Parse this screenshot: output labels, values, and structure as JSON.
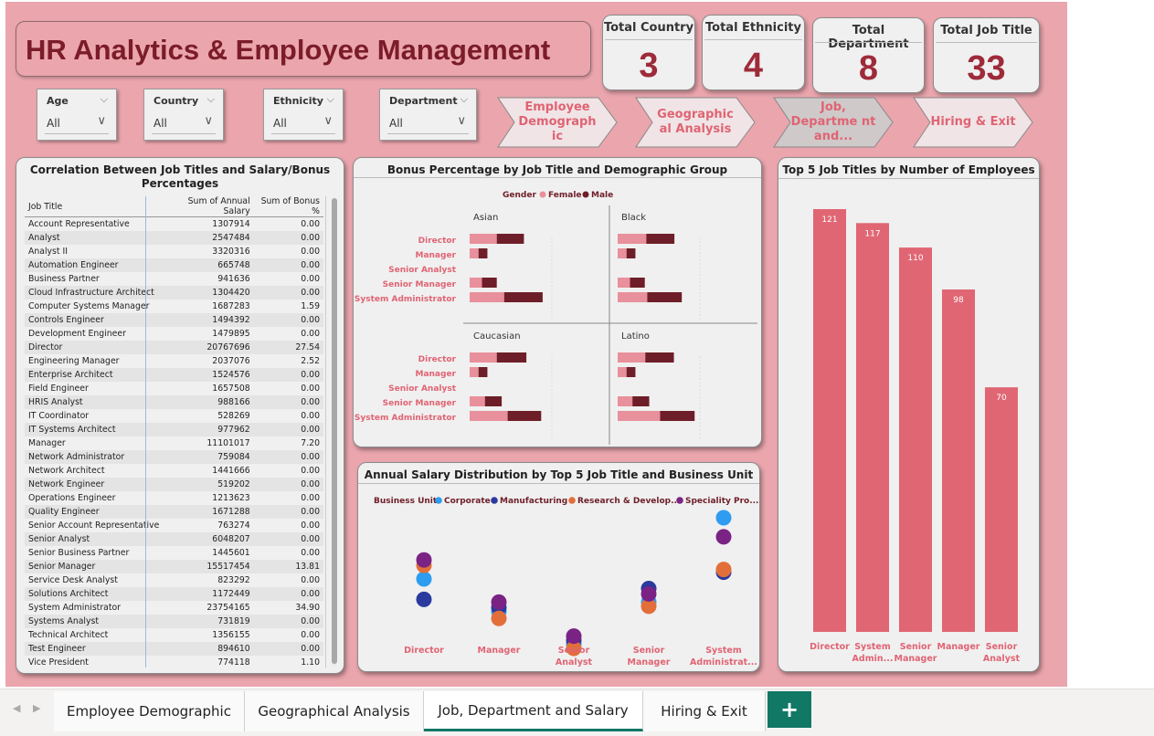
{
  "title": "HR Analytics & Employee Management",
  "kpis": [
    {
      "label": "Total Country",
      "value": "3"
    },
    {
      "label": "Total Ethnicity",
      "value": "4"
    },
    {
      "label": "Total Department",
      "value": "8"
    },
    {
      "label": "Total Job Title",
      "value": "33"
    }
  ],
  "slicers": [
    {
      "label": "Age",
      "value": "All"
    },
    {
      "label": "Country",
      "value": "All"
    },
    {
      "label": "Ethnicity",
      "value": "All"
    },
    {
      "label": "Department",
      "value": "All"
    }
  ],
  "nav_buttons": [
    {
      "label": "Employee Demograph ic"
    },
    {
      "label": "Geographic al Analysis"
    },
    {
      "label": "Job, Departme nt and..."
    },
    {
      "label": "Hiring & Exit"
    }
  ],
  "correlation_table": {
    "title": "Correlation Between Job Titles and Salary/Bonus Percentages",
    "columns": [
      "Job Title",
      "Sum of Annual Salary",
      "Sum of Bonus %"
    ],
    "rows": [
      [
        "Account Representative",
        "1307914",
        "0.00"
      ],
      [
        "Analyst",
        "2547484",
        "0.00"
      ],
      [
        "Analyst II",
        "3320316",
        "0.00"
      ],
      [
        "Automation Engineer",
        "665748",
        "0.00"
      ],
      [
        "Business Partner",
        "941636",
        "0.00"
      ],
      [
        "Cloud Infrastructure Architect",
        "1304420",
        "0.00"
      ],
      [
        "Computer Systems Manager",
        "1687283",
        "1.59"
      ],
      [
        "Controls Engineer",
        "1494392",
        "0.00"
      ],
      [
        "Development Engineer",
        "1479895",
        "0.00"
      ],
      [
        "Director",
        "20767696",
        "27.54"
      ],
      [
        "Engineering Manager",
        "2037076",
        "2.52"
      ],
      [
        "Enterprise Architect",
        "1524576",
        "0.00"
      ],
      [
        "Field Engineer",
        "1657508",
        "0.00"
      ],
      [
        "HRIS Analyst",
        "988166",
        "0.00"
      ],
      [
        "IT Coordinator",
        "528269",
        "0.00"
      ],
      [
        "IT Systems Architect",
        "977962",
        "0.00"
      ],
      [
        "Manager",
        "11101017",
        "7.20"
      ],
      [
        "Network Administrator",
        "759084",
        "0.00"
      ],
      [
        "Network Architect",
        "1441666",
        "0.00"
      ],
      [
        "Network Engineer",
        "519202",
        "0.00"
      ],
      [
        "Operations Engineer",
        "1213623",
        "0.00"
      ],
      [
        "Quality Engineer",
        "1671288",
        "0.00"
      ],
      [
        "Senior Account Representative",
        "763274",
        "0.00"
      ],
      [
        "Senior Analyst",
        "6048207",
        "0.00"
      ],
      [
        "Senior Business Partner",
        "1445601",
        "0.00"
      ],
      [
        "Senior Manager",
        "15517454",
        "13.81"
      ],
      [
        "Service Desk Analyst",
        "823292",
        "0.00"
      ],
      [
        "Solutions Architect",
        "1172449",
        "0.00"
      ],
      [
        "System Administrator",
        "23754165",
        "34.90"
      ],
      [
        "Systems Analyst",
        "731819",
        "0.00"
      ],
      [
        "Technical Architect",
        "1356155",
        "0.00"
      ],
      [
        "Test Engineer",
        "894610",
        "0.00"
      ],
      [
        "Vice President",
        "774118",
        "1.10"
      ]
    ]
  },
  "chart_data": [
    {
      "type": "bar",
      "orientation": "horizontal-stacked",
      "title": "Bonus Percentage by Job Title and Demographic Group",
      "legend_title": "Gender",
      "legend": [
        "Female",
        "Male"
      ],
      "legend_position": "top-center",
      "categories": [
        "Director",
        "Manager",
        "Senior Analyst",
        "Senior Manager",
        "System Administrator"
      ],
      "panels": [
        {
          "name": "Asian",
          "series": [
            {
              "name": "Female",
              "values": [
                5.5,
                1.8,
                0,
                2.5,
                7.0
              ]
            },
            {
              "name": "Male",
              "values": [
                5.5,
                1.8,
                0,
                3.0,
                7.8
              ]
            }
          ]
        },
        {
          "name": "Black",
          "series": [
            {
              "name": "Female",
              "values": [
                5.8,
                1.8,
                0,
                2.5,
                6.0
              ]
            },
            {
              "name": "Male",
              "values": [
                5.7,
                1.8,
                0,
                3.0,
                7.0
              ]
            }
          ]
        },
        {
          "name": "Caucasian",
          "series": [
            {
              "name": "Female",
              "values": [
                5.5,
                1.8,
                0,
                3.1,
                7.7
              ]
            },
            {
              "name": "Male",
              "values": [
                6.0,
                1.8,
                0,
                3.4,
                6.8
              ]
            }
          ]
        },
        {
          "name": "Latino",
          "series": [
            {
              "name": "Female",
              "values": [
                5.6,
                1.8,
                0,
                3.0,
                8.6
              ]
            },
            {
              "name": "Male",
              "values": [
                5.8,
                1.8,
                0,
                3.4,
                7.0
              ]
            }
          ]
        }
      ],
      "colors": {
        "Female": "#e8909b",
        "Male": "#6e1e28"
      }
    },
    {
      "type": "scatter",
      "title": "Annual Salary Distribution by Top 5 Job Title and Business Unit",
      "legend_title": "Business Unit",
      "legend": [
        "Corporate",
        "Manufacturing",
        "Research & Develop...",
        "Speciality Pro..."
      ],
      "legend_position": "top-left",
      "categories": [
        "Director",
        "Manager",
        "Senior Analyst",
        "Senior Manager",
        "System Administrat..."
      ],
      "series": [
        {
          "name": "Corporate",
          "color": "#2e9cf0",
          "values": [
            0.55,
            0.31,
            0.07,
            0.38,
            1.0
          ]
        },
        {
          "name": "Manufacturing",
          "color": "#2b3a9e",
          "values": [
            0.4,
            0.34,
            0.1,
            0.48,
            0.6
          ]
        },
        {
          "name": "Research & Develop...",
          "color": "#e26f3a",
          "values": [
            0.65,
            0.26,
            0.04,
            0.35,
            0.62
          ]
        },
        {
          "name": "Speciality Pro...",
          "color": "#7a2385",
          "values": [
            0.69,
            0.38,
            0.13,
            0.44,
            0.86
          ]
        }
      ]
    },
    {
      "type": "bar",
      "title": "Top 5 Job Titles by Number of Employees",
      "categories": [
        "Director",
        "System Admin...",
        "Senior Manager",
        "Manager",
        "Senior Analyst"
      ],
      "values": [
        121,
        117,
        110,
        98,
        70
      ],
      "color": "#e06673"
    }
  ],
  "tabs": [
    "Employee Demographic",
    "Geographical Analysis",
    "Job, Department and Salary",
    "Hiring & Exit"
  ],
  "active_tab": "Job, Department and Salary",
  "add_tab": "+",
  "colors": {
    "canvas": "#eaa5ad",
    "title_text": "#7b1c2a",
    "kpi_value": "#9e2b3a",
    "accent": "#117865"
  }
}
